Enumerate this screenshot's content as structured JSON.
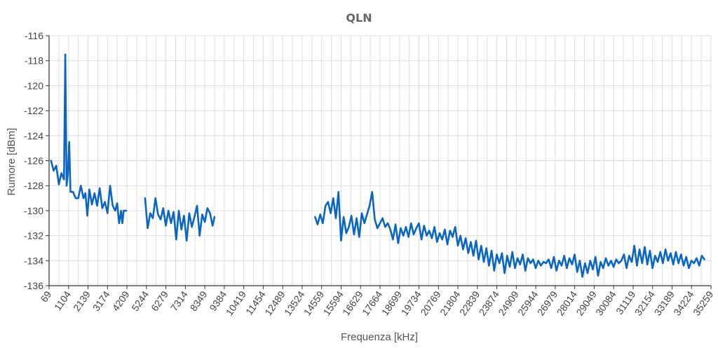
{
  "chart_data": {
    "type": "line",
    "title": "QLN",
    "xlabel": "Frequenza [kHz]",
    "ylabel": "Rumore [dBm]",
    "ylim": [
      -136,
      -116
    ],
    "xlim": [
      69,
      35259
    ],
    "grid": true,
    "y_ticks": [
      -116,
      -118,
      -120,
      -122,
      -124,
      -126,
      -128,
      -130,
      -132,
      -134,
      -136
    ],
    "x_ticks": [
      "69",
      "1104",
      "2139",
      "3174",
      "4209",
      "5244",
      "6279",
      "7314",
      "8349",
      "9384",
      "10419",
      "11454",
      "12489",
      "13524",
      "14559",
      "15594",
      "16629",
      "17664",
      "18699",
      "19734",
      "20769",
      "21804",
      "22839",
      "23874",
      "24909",
      "25944",
      "26979",
      "28014",
      "29049",
      "30084",
      "31119",
      "32154",
      "33189",
      "34224",
      "35259"
    ],
    "series": [
      {
        "color": "#0a66c2",
        "segments": [
          [
            [
              172,
              -126
            ],
            [
              310,
              -126.8
            ],
            [
              448,
              -126.4
            ],
            [
              586,
              -127.9
            ],
            [
              724,
              -127
            ],
            [
              862,
              -127.5
            ],
            [
              931,
              -117.5
            ],
            [
              1000,
              -128
            ],
            [
              1069,
              -127
            ],
            [
              1138,
              -124.5
            ],
            [
              1207,
              -128.5
            ],
            [
              1345,
              -128.5
            ],
            [
              1483,
              -129
            ],
            [
              1621,
              -129
            ],
            [
              1759,
              -128
            ],
            [
              1897,
              -129
            ],
            [
              2000,
              -128.6
            ],
            [
              2104,
              -130.4
            ],
            [
              2207,
              -128.3
            ],
            [
              2345,
              -129.5
            ],
            [
              2483,
              -128.6
            ],
            [
              2621,
              -129.6
            ],
            [
              2759,
              -128.2
            ],
            [
              2897,
              -129.8
            ],
            [
              3035,
              -129.3
            ],
            [
              3173,
              -130.2
            ],
            [
              3311,
              -128
            ],
            [
              3449,
              -129.6
            ],
            [
              3587,
              -130
            ],
            [
              3690,
              -129.4
            ],
            [
              3794,
              -131
            ],
            [
              3897,
              -130
            ],
            [
              3966,
              -131
            ],
            [
              4035,
              -130
            ],
            [
              4173,
              -130
            ]
          ],
          [
            [
              5173,
              -129
            ],
            [
              5311,
              -131.4
            ],
            [
              5449,
              -130.2
            ],
            [
              5587,
              -130.6
            ],
            [
              5725,
              -129
            ],
            [
              5863,
              -130.3
            ],
            [
              6001,
              -130.7
            ],
            [
              6139,
              -129.8
            ],
            [
              6277,
              -131.2
            ],
            [
              6415,
              -130
            ],
            [
              6553,
              -131
            ],
            [
              6691,
              -130.1
            ],
            [
              6829,
              -132.3
            ],
            [
              6967,
              -130
            ],
            [
              7105,
              -131.5
            ],
            [
              7243,
              -130.4
            ],
            [
              7381,
              -132.4
            ],
            [
              7519,
              -130.2
            ],
            [
              7657,
              -131.3
            ],
            [
              7795,
              -130.5
            ],
            [
              7933,
              -129.6
            ],
            [
              8071,
              -132
            ],
            [
              8209,
              -130.3
            ],
            [
              8347,
              -130.9
            ],
            [
              8485,
              -129.8
            ],
            [
              8623,
              -130.2
            ],
            [
              8761,
              -131.2
            ],
            [
              8864,
              -130.5
            ]
          ],
          [
            [
              14210,
              -130.5
            ],
            [
              14348,
              -131.1
            ],
            [
              14486,
              -130.3
            ],
            [
              14624,
              -131
            ],
            [
              14762,
              -129.6
            ],
            [
              14900,
              -129.3
            ],
            [
              15038,
              -130.2
            ],
            [
              15176,
              -129
            ],
            [
              15314,
              -130.6
            ],
            [
              15452,
              -128.5
            ],
            [
              15590,
              -132.4
            ],
            [
              15728,
              -130.5
            ],
            [
              15866,
              -131.8
            ],
            [
              16004,
              -131.3
            ],
            [
              16142,
              -130.4
            ],
            [
              16280,
              -131.9
            ],
            [
              16418,
              -130.6
            ],
            [
              16556,
              -132.1
            ],
            [
              16694,
              -130.2
            ],
            [
              16832,
              -131
            ],
            [
              16970,
              -130.3
            ],
            [
              17108,
              -129.6
            ],
            [
              17246,
              -128.5
            ],
            [
              17384,
              -130.7
            ],
            [
              17522,
              -131.4
            ],
            [
              17660,
              -131
            ],
            [
              17798,
              -130.6
            ],
            [
              17936,
              -131.3
            ],
            [
              18074,
              -131
            ],
            [
              18212,
              -131.5
            ],
            [
              18350,
              -132.3
            ],
            [
              18488,
              -131.1
            ],
            [
              18626,
              -132.6
            ],
            [
              18764,
              -131.4
            ],
            [
              18902,
              -132
            ],
            [
              19040,
              -131.3
            ],
            [
              19178,
              -132.1
            ],
            [
              19316,
              -131
            ],
            [
              19454,
              -131.9
            ],
            [
              19592,
              -131.4
            ],
            [
              19730,
              -131
            ],
            [
              19868,
              -132.3
            ],
            [
              20006,
              -131.2
            ],
            [
              20144,
              -132
            ],
            [
              20282,
              -131.6
            ],
            [
              20420,
              -132.2
            ],
            [
              20558,
              -131.3
            ],
            [
              20696,
              -132.5
            ],
            [
              20834,
              -131.8
            ],
            [
              20972,
              -132.3
            ],
            [
              21110,
              -131.5
            ],
            [
              21248,
              -132.7
            ],
            [
              21386,
              -131.6
            ],
            [
              21524,
              -132.1
            ],
            [
              21662,
              -131.3
            ],
            [
              21800,
              -132.8
            ],
            [
              21938,
              -132
            ],
            [
              22076,
              -133.1
            ],
            [
              22214,
              -132.2
            ],
            [
              22352,
              -133.4
            ],
            [
              22490,
              -132.5
            ],
            [
              22628,
              -133.6
            ],
            [
              22766,
              -132.4
            ],
            [
              22904,
              -133.9
            ],
            [
              23042,
              -132.8
            ],
            [
              23180,
              -134.1
            ],
            [
              23318,
              -133
            ],
            [
              23456,
              -134.4
            ],
            [
              23594,
              -133.2
            ],
            [
              23732,
              -134.8
            ],
            [
              23870,
              -133.5
            ],
            [
              24008,
              -134.2
            ],
            [
              24146,
              -133.4
            ],
            [
              24284,
              -135
            ],
            [
              24422,
              -133.6
            ],
            [
              24560,
              -134.5
            ],
            [
              24698,
              -133.3
            ],
            [
              24836,
              -134.6
            ],
            [
              24974,
              -133.8
            ],
            [
              25112,
              -134.3
            ],
            [
              25250,
              -133.5
            ],
            [
              25388,
              -134.8
            ],
            [
              25526,
              -133.8
            ],
            [
              25664,
              -134.2
            ],
            [
              25802,
              -133.9
            ],
            [
              25940,
              -134.6
            ],
            [
              26078,
              -134
            ],
            [
              26216,
              -134.4
            ],
            [
              26354,
              -134.1
            ],
            [
              26492,
              -134.2
            ],
            [
              26630,
              -133.9
            ],
            [
              26768,
              -134.6
            ],
            [
              26906,
              -133.7
            ],
            [
              27044,
              -134.8
            ],
            [
              27182,
              -134
            ],
            [
              27320,
              -134.4
            ],
            [
              27458,
              -133.6
            ],
            [
              27596,
              -134.6
            ],
            [
              27734,
              -133.8
            ],
            [
              27872,
              -134.3
            ],
            [
              28010,
              -133.5
            ],
            [
              28148,
              -134.9
            ],
            [
              28286,
              -134
            ],
            [
              28424,
              -135.3
            ],
            [
              28562,
              -134.2
            ],
            [
              28700,
              -135
            ],
            [
              28838,
              -134
            ],
            [
              28976,
              -134.7
            ],
            [
              29114,
              -133.7
            ],
            [
              29252,
              -135.2
            ],
            [
              29390,
              -134.1
            ],
            [
              29528,
              -134.6
            ],
            [
              29666,
              -133.8
            ],
            [
              29804,
              -134.4
            ],
            [
              29942,
              -134
            ],
            [
              30080,
              -134.5
            ],
            [
              30218,
              -133.9
            ],
            [
              30356,
              -134.2
            ],
            [
              30494,
              -134
            ],
            [
              30632,
              -133.5
            ],
            [
              30770,
              -134.6
            ],
            [
              30908,
              -133.6
            ],
            [
              31046,
              -134.1
            ],
            [
              31184,
              -132.8
            ],
            [
              31322,
              -134.4
            ],
            [
              31460,
              -133.1
            ],
            [
              31598,
              -134.2
            ],
            [
              31736,
              -132.9
            ],
            [
              31874,
              -134.3
            ],
            [
              32012,
              -133.2
            ],
            [
              32150,
              -134.6
            ],
            [
              32288,
              -133.6
            ],
            [
              32426,
              -134.1
            ],
            [
              32564,
              -133.3
            ],
            [
              32702,
              -134.2
            ],
            [
              32840,
              -133.1
            ],
            [
              32978,
              -134
            ],
            [
              33116,
              -133.4
            ],
            [
              33254,
              -134.3
            ],
            [
              33392,
              -133.3
            ],
            [
              33530,
              -134.2
            ],
            [
              33668,
              -133.5
            ],
            [
              33806,
              -134.4
            ],
            [
              33944,
              -133.7
            ],
            [
              34082,
              -134.6
            ],
            [
              34220,
              -134
            ],
            [
              34358,
              -134.2
            ],
            [
              34496,
              -133.8
            ],
            [
              34634,
              -134.4
            ],
            [
              34772,
              -133.6
            ],
            [
              34910,
              -133.9
            ]
          ]
        ]
      }
    ]
  }
}
